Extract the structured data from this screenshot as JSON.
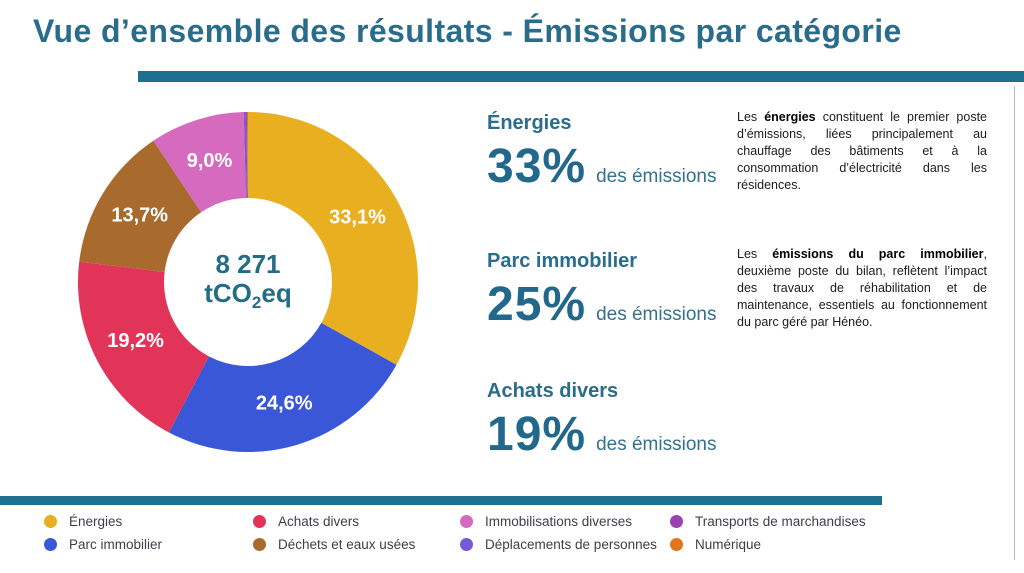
{
  "title": "Vue d’ensemble des résultats - Émissions par catégorie",
  "accent": {
    "bar_color": "#1F7090",
    "heading_color": "#2A6C8C"
  },
  "chart_data": {
    "type": "pie",
    "donut": true,
    "start_angle_deg": 0,
    "direction": "clockwise",
    "center_value": "8 271",
    "center_unit_prefix": "tCO",
    "center_unit_sub": "2",
    "center_unit_suffix": "eq",
    "slices": [
      {
        "slug": "energies",
        "name": "Énergies",
        "value": 33.1,
        "label": "33,1%",
        "color": "#E8AF21"
      },
      {
        "slug": "parc-immobilier",
        "name": "Parc immobilier",
        "value": 24.6,
        "label": "24,6%",
        "color": "#3A57D7"
      },
      {
        "slug": "achats-divers",
        "name": "Achats divers",
        "value": 19.2,
        "label": "19,2%",
        "color": "#E23459"
      },
      {
        "slug": "dechets-et-eaux-usees",
        "name": "Déchets et eaux usées",
        "value": 13.7,
        "label": "13,7%",
        "color": "#A96A2D"
      },
      {
        "slug": "immobilisations-diverses",
        "name": "Immobilisations diverses",
        "value": 9.0,
        "label": "9,0%",
        "color": "#D66ABE"
      },
      {
        "slug": "deplacements-de-personnes",
        "name": "Déplacements de personnes",
        "value": 0.2,
        "label": "",
        "color": "#7559D8"
      },
      {
        "slug": "transports-de-marchandises",
        "name": "Transports de marchandises",
        "value": 0.1,
        "label": "",
        "color": "#9A43B0"
      },
      {
        "slug": "numerique",
        "name": "Numérique",
        "value": 0.1,
        "label": "",
        "color": "#E2761D"
      }
    ]
  },
  "stats": [
    {
      "name": "Énergies",
      "pct": "33%",
      "suffix": "des émissions"
    },
    {
      "name": "Parc immobilier",
      "pct": "25%",
      "suffix": "des émissions"
    },
    {
      "name": "Achats divers",
      "pct": "19%",
      "suffix": "des émissions"
    }
  ],
  "panels": [
    {
      "segments": [
        {
          "t": "Les ",
          "b": false
        },
        {
          "t": "énergies",
          "b": true
        },
        {
          "t": " constituent le premier poste d’émissions, liées principalement au chauffage des bâtiments et à la consommation d’électricité dans les résidences.",
          "b": false
        }
      ]
    },
    {
      "segments": [
        {
          "t": "Les ",
          "b": false
        },
        {
          "t": "émissions du parc immobilier",
          "b": true
        },
        {
          "t": ", deuxième poste du bilan, reflètent l’impact des travaux de réhabilitation et de maintenance, essentiels au fonctionnement du parc géré par Hénéo.",
          "b": false
        }
      ]
    }
  ],
  "legend": {
    "column_lefts": [
      44,
      253,
      460,
      670
    ]
  }
}
